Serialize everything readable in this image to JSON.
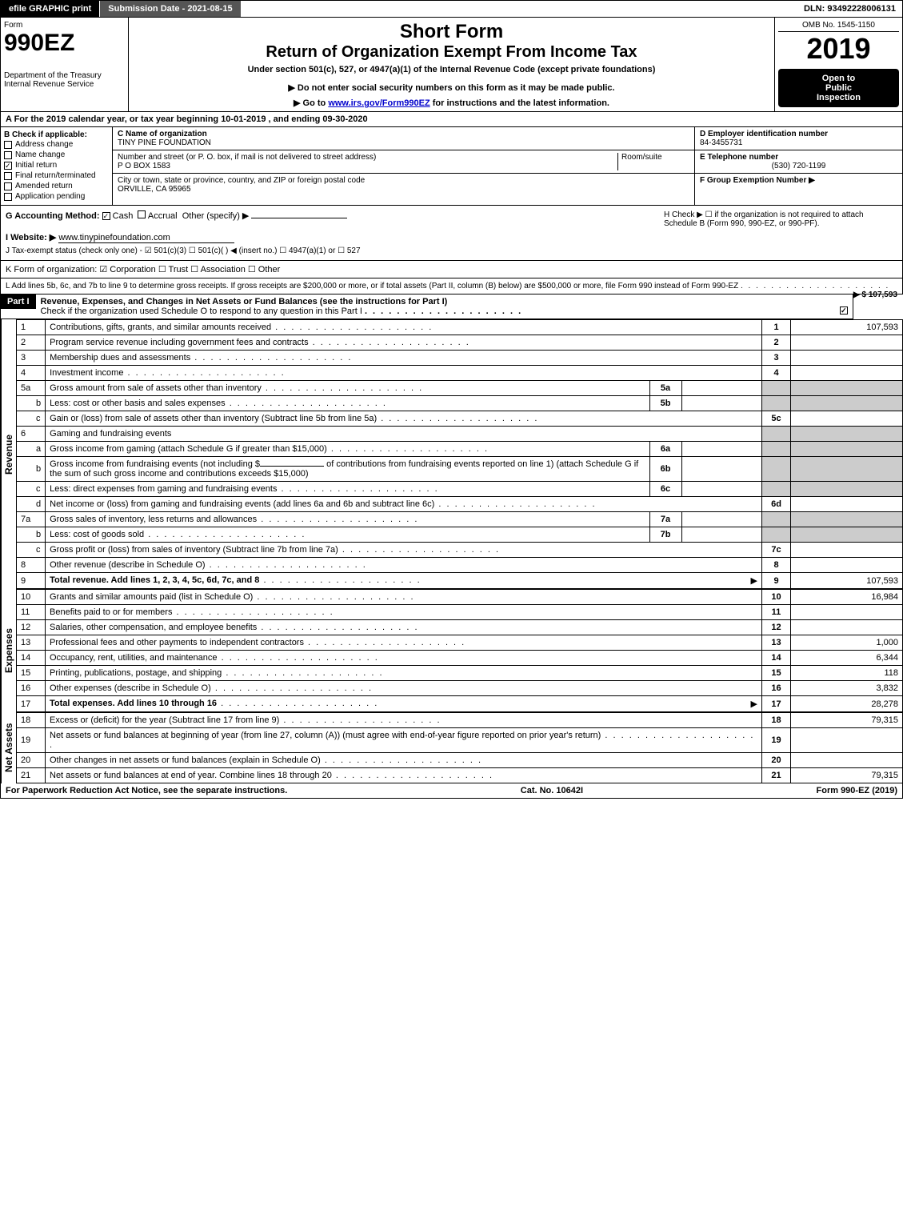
{
  "top_bar": {
    "efile": "efile GRAPHIC print",
    "submission": "Submission Date - 2021-08-15",
    "dln": "DLN: 93492228006131"
  },
  "header": {
    "form_label": "Form",
    "form_number": "990EZ",
    "dept": "Department of the Treasury",
    "irs": "Internal Revenue Service",
    "short_form": "Short Form",
    "title": "Return of Organization Exempt From Income Tax",
    "subtitle": "Under section 501(c), 527, or 4947(a)(1) of the Internal Revenue Code (except private foundations)",
    "warning": "▶ Do not enter social security numbers on this form as it may be made public.",
    "goto": "▶ Go to ",
    "goto_link": "www.irs.gov/Form990EZ",
    "goto_suffix": " for instructions and the latest information.",
    "omb": "OMB No. 1545-1150",
    "year": "2019",
    "inspection1": "Open to",
    "inspection2": "Public",
    "inspection3": "Inspection"
  },
  "tax_year": "A  For the 2019 calendar year, or tax year beginning 10-01-2019 , and ending 09-30-2020",
  "section_B": {
    "label": "B  Check if applicable:",
    "items": [
      "Address change",
      "Name change",
      "Initial return",
      "Final return/terminated",
      "Amended return",
      "Application pending"
    ],
    "checked_index": 2
  },
  "section_C": {
    "label": "C Name of organization",
    "name": "TINY PINE FOUNDATION",
    "addr_label": "Number and street (or P. O. box, if mail is not delivered to street address)",
    "room_label": "Room/suite",
    "addr": "P O BOX 1583",
    "city_label": "City or town, state or province, country, and ZIP or foreign postal code",
    "city": "ORVILLE, CA  95965"
  },
  "section_D": {
    "label": "D Employer identification number",
    "value": "84-3455731"
  },
  "section_E": {
    "label": "E Telephone number",
    "value": "(530) 720-1199"
  },
  "section_F": {
    "label": "F Group Exemption Number   ▶"
  },
  "section_G": {
    "label": "G Accounting Method:",
    "cash": "Cash",
    "accrual": "Accrual",
    "other": "Other (specify) ▶"
  },
  "section_H": {
    "text": "H  Check ▶  ☐  if the organization is not required to attach Schedule B (Form 990, 990-EZ, or 990-PF)."
  },
  "section_I": {
    "label": "I Website: ▶",
    "value": "www.tinypinefoundation.com"
  },
  "section_J": {
    "label": "J Tax-exempt status (check only one) -  ☑ 501(c)(3)  ☐ 501(c)(  ) ◀ (insert no.)  ☐ 4947(a)(1) or  ☐ 527"
  },
  "section_K": {
    "label": "K Form of organization:  ☑ Corporation  ☐ Trust  ☐ Association  ☐ Other"
  },
  "section_L": {
    "text": "L Add lines 5b, 6c, and 7b to line 9 to determine gross receipts. If gross receipts are $200,000 or more, or if total assets (Part II, column (B) below) are $500,000 or more, file Form 990 instead of Form 990-EZ",
    "amount": "▶ $ 107,593"
  },
  "part1": {
    "label": "Part I",
    "title": "Revenue, Expenses, and Changes in Net Assets or Fund Balances (see the instructions for Part I)",
    "check_text": "Check if the organization used Schedule O to respond to any question in this Part I",
    "checked": true
  },
  "side_labels": {
    "revenue": "Revenue",
    "expenses": "Expenses",
    "netassets": "Net Assets"
  },
  "lines": {
    "l1": {
      "num": "1",
      "desc": "Contributions, gifts, grants, and similar amounts received",
      "box": "1",
      "amt": "107,593"
    },
    "l2": {
      "num": "2",
      "desc": "Program service revenue including government fees and contracts",
      "box": "2",
      "amt": ""
    },
    "l3": {
      "num": "3",
      "desc": "Membership dues and assessments",
      "box": "3",
      "amt": ""
    },
    "l4": {
      "num": "4",
      "desc": "Investment income",
      "box": "4",
      "amt": ""
    },
    "l5a": {
      "num": "5a",
      "desc": "Gross amount from sale of assets other than inventory",
      "inner": "5a"
    },
    "l5b": {
      "num": "b",
      "desc": "Less: cost or other basis and sales expenses",
      "inner": "5b"
    },
    "l5c": {
      "num": "c",
      "desc": "Gain or (loss) from sale of assets other than inventory (Subtract line 5b from line 5a)",
      "box": "5c",
      "amt": ""
    },
    "l6": {
      "num": "6",
      "desc": "Gaming and fundraising events"
    },
    "l6a": {
      "num": "a",
      "desc": "Gross income from gaming (attach Schedule G if greater than $15,000)",
      "inner": "6a"
    },
    "l6b": {
      "num": "b",
      "desc1": "Gross income from fundraising events (not including $",
      "desc2": "of contributions from fundraising events reported on line 1) (attach Schedule G if the sum of such gross income and contributions exceeds $15,000)",
      "inner": "6b"
    },
    "l6c": {
      "num": "c",
      "desc": "Less: direct expenses from gaming and fundraising events",
      "inner": "6c"
    },
    "l6d": {
      "num": "d",
      "desc": "Net income or (loss) from gaming and fundraising events (add lines 6a and 6b and subtract line 6c)",
      "box": "6d",
      "amt": ""
    },
    "l7a": {
      "num": "7a",
      "desc": "Gross sales of inventory, less returns and allowances",
      "inner": "7a"
    },
    "l7b": {
      "num": "b",
      "desc": "Less: cost of goods sold",
      "inner": "7b"
    },
    "l7c": {
      "num": "c",
      "desc": "Gross profit or (loss) from sales of inventory (Subtract line 7b from line 7a)",
      "box": "7c",
      "amt": ""
    },
    "l8": {
      "num": "8",
      "desc": "Other revenue (describe in Schedule O)",
      "box": "8",
      "amt": ""
    },
    "l9": {
      "num": "9",
      "desc": "Total revenue. Add lines 1, 2, 3, 4, 5c, 6d, 7c, and 8",
      "box": "9",
      "amt": "107,593",
      "bold": true
    },
    "l10": {
      "num": "10",
      "desc": "Grants and similar amounts paid (list in Schedule O)",
      "box": "10",
      "amt": "16,984"
    },
    "l11": {
      "num": "11",
      "desc": "Benefits paid to or for members",
      "box": "11",
      "amt": ""
    },
    "l12": {
      "num": "12",
      "desc": "Salaries, other compensation, and employee benefits",
      "box": "12",
      "amt": ""
    },
    "l13": {
      "num": "13",
      "desc": "Professional fees and other payments to independent contractors",
      "box": "13",
      "amt": "1,000"
    },
    "l14": {
      "num": "14",
      "desc": "Occupancy, rent, utilities, and maintenance",
      "box": "14",
      "amt": "6,344"
    },
    "l15": {
      "num": "15",
      "desc": "Printing, publications, postage, and shipping",
      "box": "15",
      "amt": "118"
    },
    "l16": {
      "num": "16",
      "desc": "Other expenses (describe in Schedule O)",
      "box": "16",
      "amt": "3,832"
    },
    "l17": {
      "num": "17",
      "desc": "Total expenses. Add lines 10 through 16",
      "box": "17",
      "amt": "28,278",
      "bold": true
    },
    "l18": {
      "num": "18",
      "desc": "Excess or (deficit) for the year (Subtract line 17 from line 9)",
      "box": "18",
      "amt": "79,315"
    },
    "l19": {
      "num": "19",
      "desc": "Net assets or fund balances at beginning of year (from line 27, column (A)) (must agree with end-of-year figure reported on prior year's return)",
      "box": "19",
      "amt": ""
    },
    "l20": {
      "num": "20",
      "desc": "Other changes in net assets or fund balances (explain in Schedule O)",
      "box": "20",
      "amt": ""
    },
    "l21": {
      "num": "21",
      "desc": "Net assets or fund balances at end of year. Combine lines 18 through 20",
      "box": "21",
      "amt": "79,315"
    }
  },
  "footer": {
    "left": "For Paperwork Reduction Act Notice, see the separate instructions.",
    "center": "Cat. No. 10642I",
    "right": "Form 990-EZ (2019)"
  }
}
